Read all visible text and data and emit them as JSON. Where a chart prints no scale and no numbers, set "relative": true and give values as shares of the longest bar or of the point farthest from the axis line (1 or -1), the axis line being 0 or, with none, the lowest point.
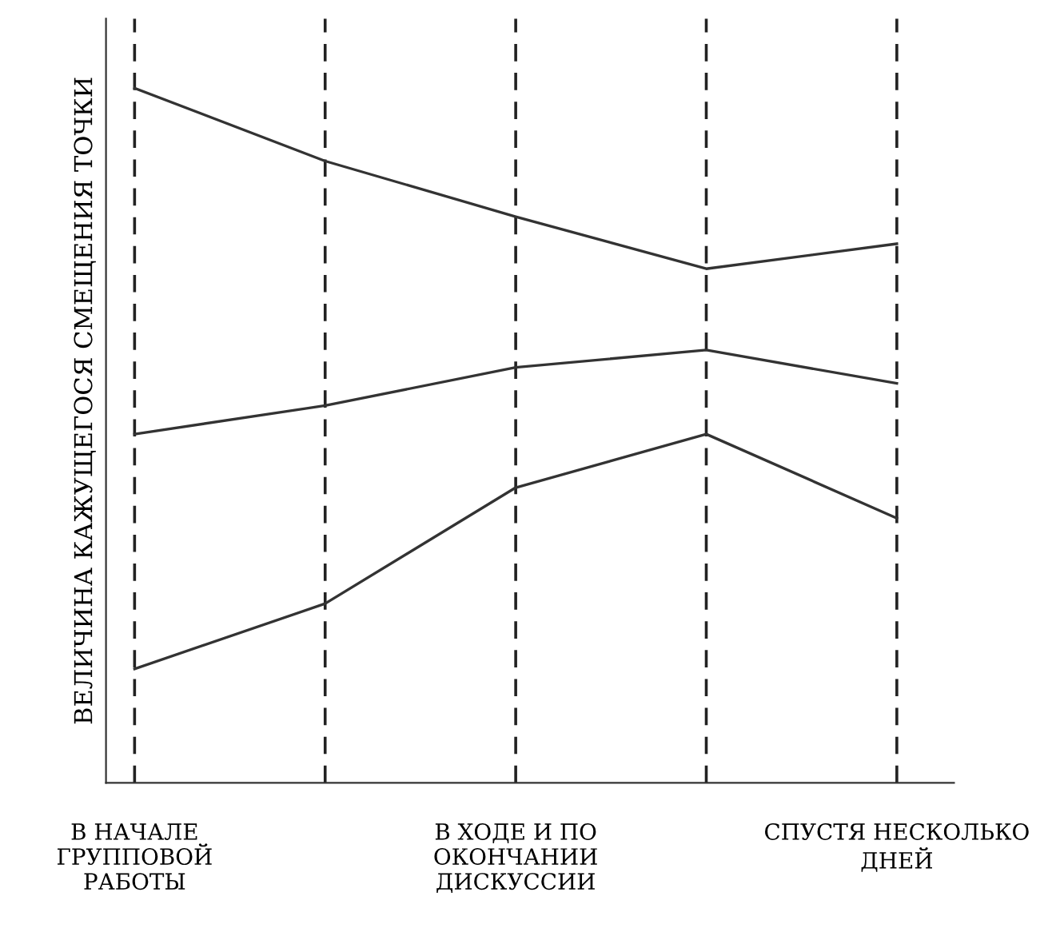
{
  "chart_data": {
    "type": "line",
    "relative": true,
    "ylabel": "ВЕЛИЧИНА КАЖУЩЕГОСЯ СМЕЩЕНИЯ ТОЧКИ",
    "categories": [
      "В НАЧАЛЕ\nГРУППОВОЙ\nРАБОТЫ",
      null,
      "В ХОДЕ И ПО\nОКОНЧАНИИ\nДИСКУССИИ",
      null,
      "СПУСТЯ НЕСКОЛЬКО\nДНЕЙ"
    ],
    "series": [
      {
        "color": "#333333",
        "values": [
          1.0,
          0.895,
          0.815,
          0.74,
          0.776
        ]
      },
      {
        "color": "#333333",
        "values": [
          0.502,
          0.543,
          0.598,
          0.623,
          0.575
        ]
      },
      {
        "color": "#333333",
        "values": [
          0.164,
          0.258,
          0.425,
          0.502,
          0.381
        ]
      }
    ],
    "grid": "x",
    "legend": false,
    "marker": "none",
    "line_style": "solid"
  }
}
